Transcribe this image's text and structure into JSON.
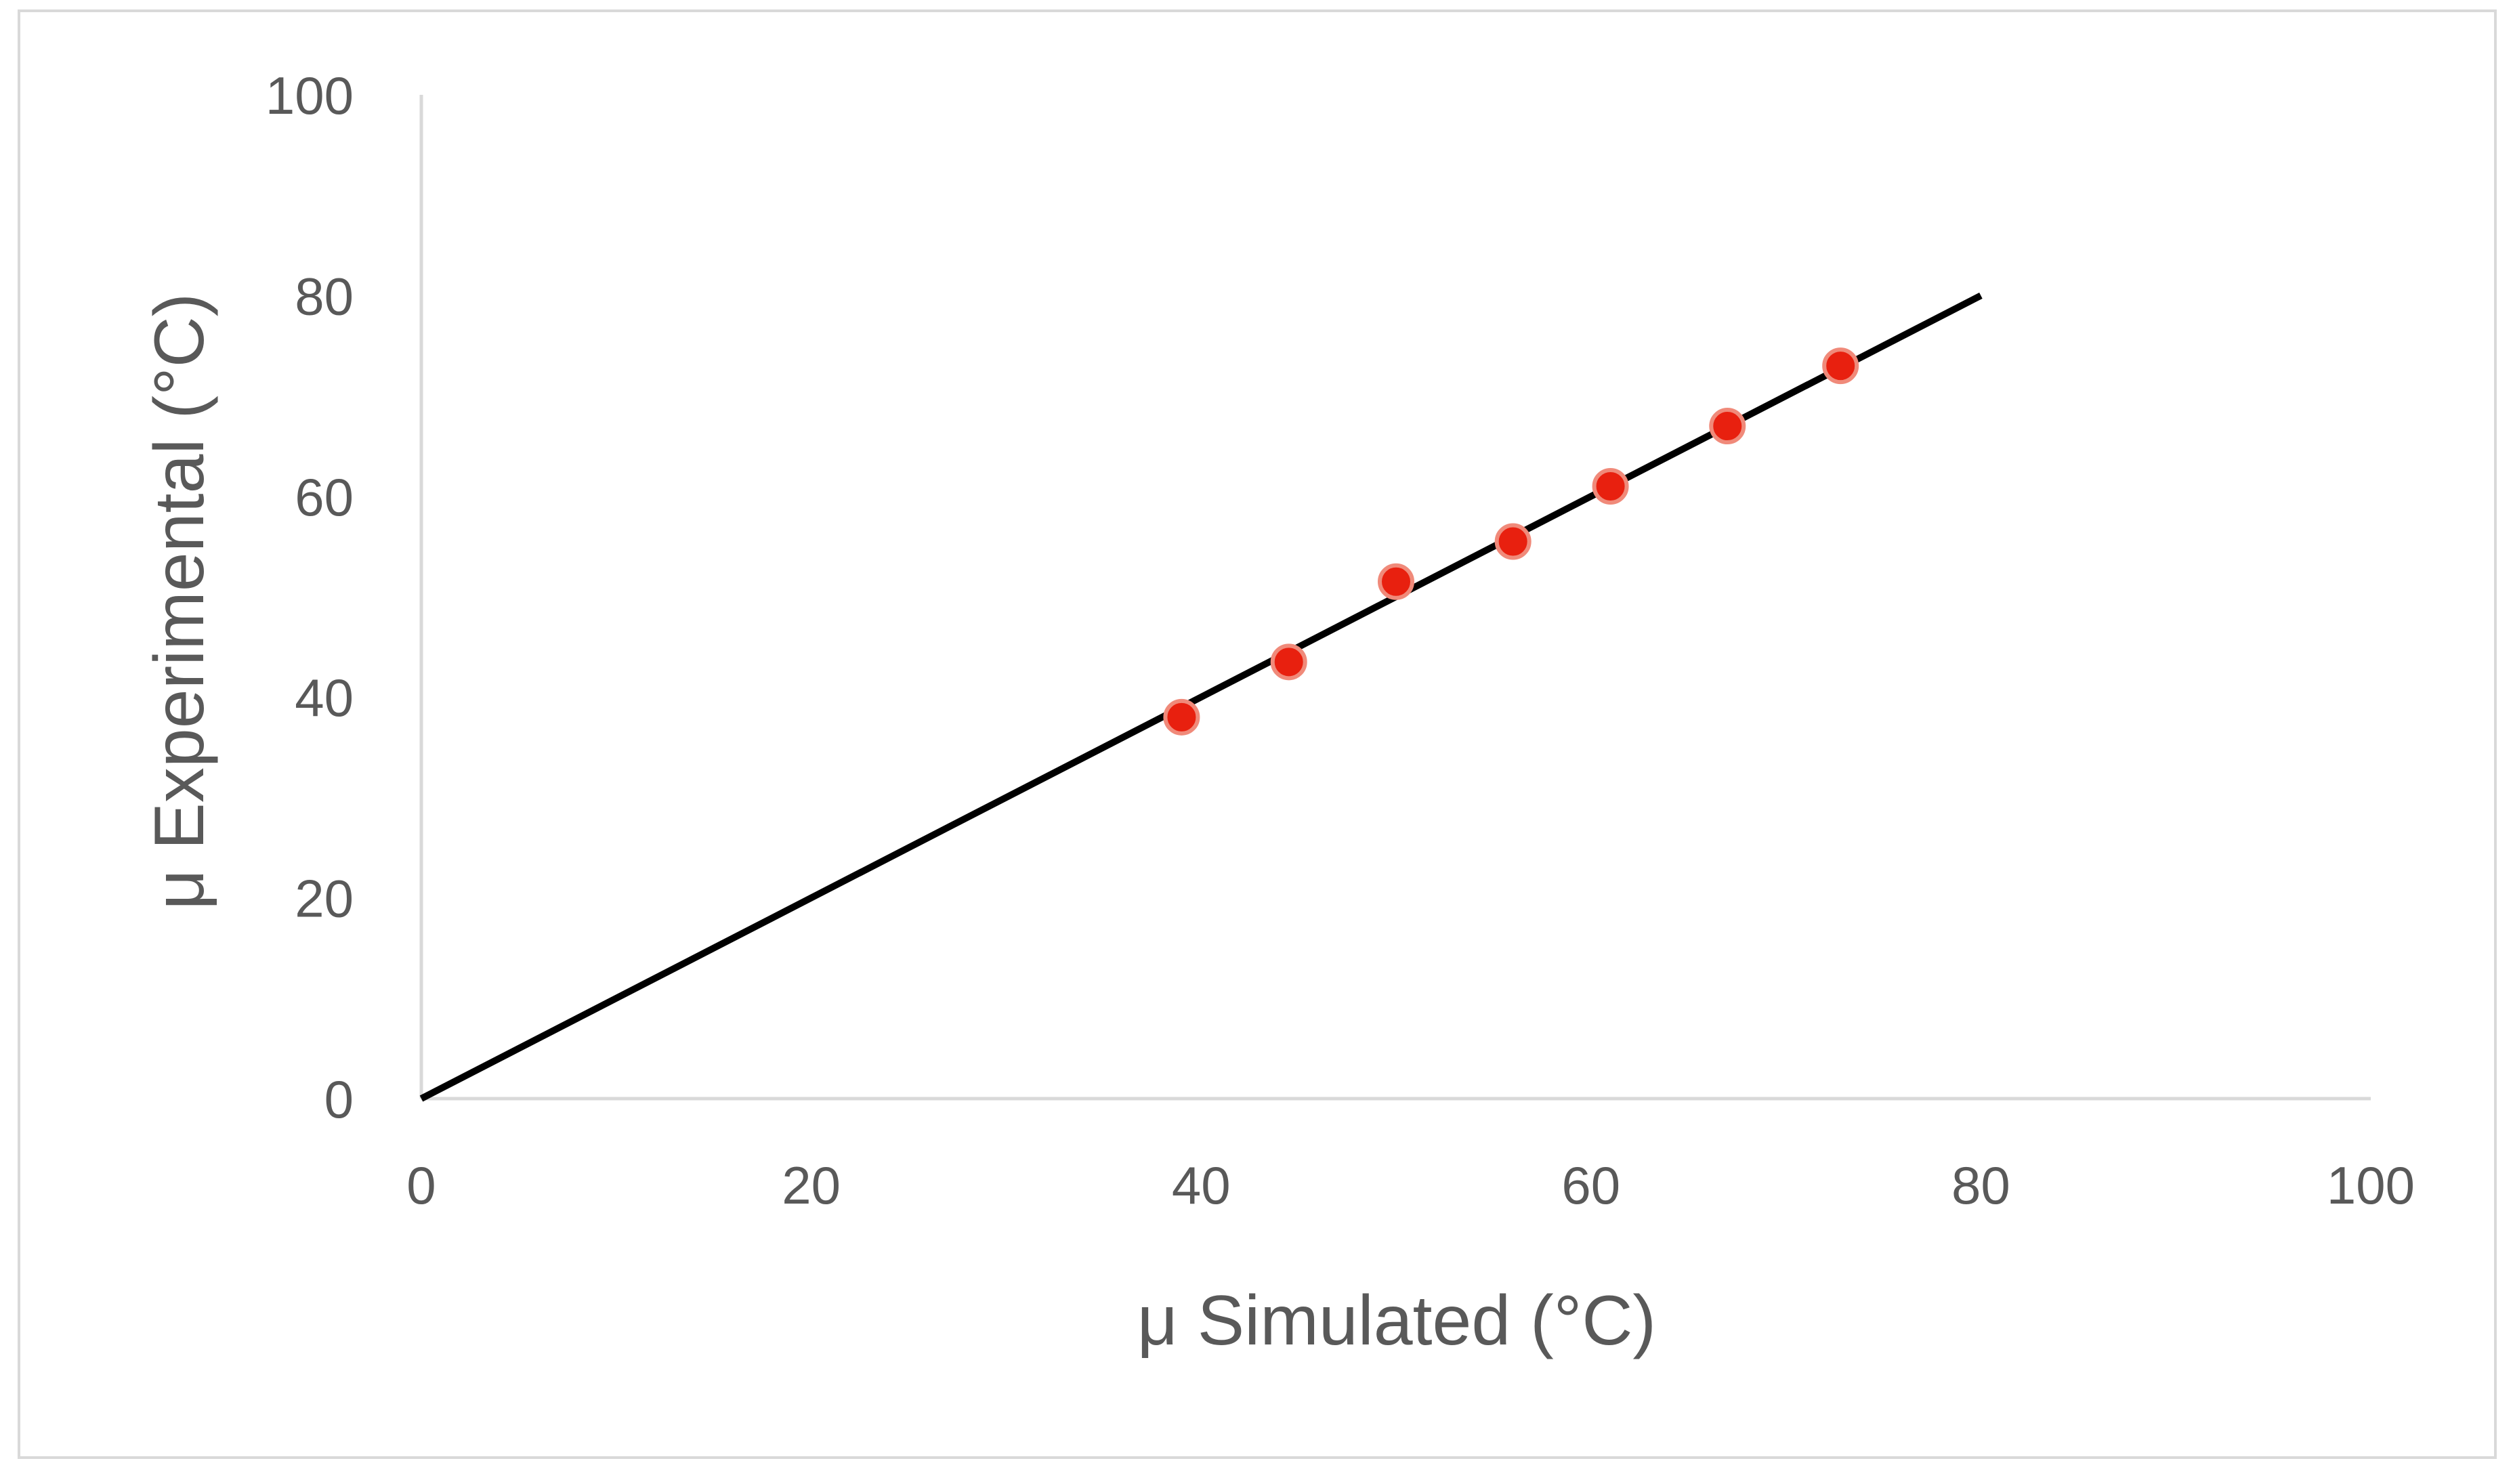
{
  "chart_data": {
    "type": "scatter",
    "title": "",
    "xlabel": "μ Simulated (°C)",
    "ylabel": "μ Experimental (°C)",
    "xlim": [
      0,
      100
    ],
    "ylim": [
      0,
      100
    ],
    "xticks": [
      "0",
      "20",
      "40",
      "60",
      "80",
      "100"
    ],
    "yticks": [
      "0",
      "20",
      "40",
      "60",
      "80",
      "100"
    ],
    "grid": false,
    "legend": "none",
    "series": [
      {
        "type": "scatter",
        "color": "#e8200f",
        "points": [
          {
            "x": 39.0,
            "y": 38.0
          },
          {
            "x": 44.5,
            "y": 43.5
          },
          {
            "x": 50.0,
            "y": 51.5
          },
          {
            "x": 56.0,
            "y": 55.5
          },
          {
            "x": 61.0,
            "y": 61.0
          },
          {
            "x": 67.0,
            "y": 67.0
          },
          {
            "x": 72.8,
            "y": 73.0
          }
        ]
      },
      {
        "type": "line",
        "color": "#000000",
        "points": [
          {
            "x": 0,
            "y": 0
          },
          {
            "x": 80,
            "y": 80
          }
        ]
      }
    ]
  }
}
